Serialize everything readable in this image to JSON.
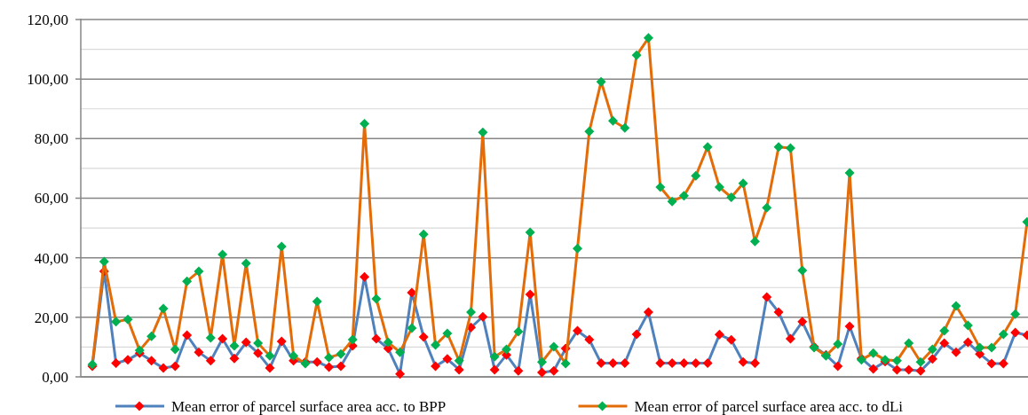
{
  "chart_data": {
    "type": "line",
    "categories": [
      null,
      null,
      null,
      null,
      null,
      null,
      null,
      null,
      null,
      null,
      null,
      null,
      null,
      null,
      null,
      null,
      null,
      null,
      null,
      null,
      null,
      null,
      null,
      null,
      null,
      null,
      null,
      null,
      null,
      null,
      null,
      null,
      null,
      null,
      null,
      null,
      null,
      null,
      null,
      null,
      null,
      null,
      null,
      null,
      null,
      null,
      null,
      null,
      null,
      null,
      null,
      null,
      null,
      null,
      null,
      null,
      null,
      null,
      null,
      null,
      null,
      null,
      null,
      null,
      null,
      null,
      null,
      null,
      null,
      null,
      null,
      null,
      null,
      null,
      null,
      null,
      null,
      null,
      null,
      null
    ],
    "series": [
      {
        "name": "Mean error of parcel surface area acc. to BPP",
        "color": "#4f81bd",
        "values": [
          3.6,
          35.4,
          4.6,
          5.7,
          8,
          5.4,
          3,
          3.6,
          14,
          8.3,
          5.4,
          12.8,
          6.2,
          11.6,
          8,
          3,
          11.9,
          5.4,
          5,
          5,
          3.3,
          3.6,
          10.4,
          33.6,
          12.8,
          9.5,
          1,
          28.3,
          13.4,
          3.6,
          6,
          2.4,
          16.6,
          20.2,
          2.4,
          7.4,
          2,
          27.7,
          1.5,
          2,
          9.5,
          15.5,
          12.5,
          4.6,
          4.6,
          4.6,
          14.3,
          21.7,
          4.6,
          4.6,
          4.6,
          4.6,
          4.6,
          14.2,
          12.4,
          5,
          4.6,
          26.8,
          21.7,
          12.8,
          18.5,
          10.1,
          7.4,
          3.6,
          17,
          6.2,
          2.7,
          5.1,
          2.4,
          2.4,
          2,
          6,
          11.3,
          8.3,
          11.6,
          7.7,
          4.5,
          4.5,
          14.9,
          14
        ]
      },
      {
        "name": "Mean error of parcel surface area acc. to dLi",
        "color": "#e36c09",
        "values": [
          4.2,
          38.7,
          18.5,
          19.3,
          8.9,
          13.6,
          22.9,
          9.2,
          32.1,
          35.4,
          13.1,
          41.1,
          10.4,
          38.1,
          11.3,
          7.1,
          43.8,
          7.1,
          4.5,
          25.3,
          6.5,
          7.7,
          12.5,
          85,
          26.2,
          11.6,
          8.3,
          16.4,
          47.9,
          10.7,
          14.6,
          5.4,
          21.7,
          82.1,
          6.8,
          9.2,
          15.2,
          48.5,
          5,
          10.1,
          4.5,
          43.1,
          82.4,
          99.1,
          86,
          83.6,
          108,
          113.8,
          63.7,
          58.9,
          60.8,
          67.5,
          77.2,
          63.7,
          60.3,
          65,
          45.5,
          56.8,
          77.2,
          76.8,
          35.7,
          9.8,
          7.1,
          11,
          68.5,
          5.7,
          8,
          5.7,
          5.4,
          11.3,
          5,
          9.2,
          15.5,
          23.8,
          17.3,
          9.8,
          9.8,
          14.3,
          21.1,
          52
        ]
      }
    ],
    "ylim": [
      0,
      120
    ],
    "yticks": [
      {
        "value": 0,
        "label": "0,00"
      },
      {
        "value": 10,
        "label": null
      },
      {
        "value": 20,
        "label": "20,00"
      },
      {
        "value": 30,
        "label": null
      },
      {
        "value": 40,
        "label": "40,00"
      },
      {
        "value": 50,
        "label": null
      },
      {
        "value": 60,
        "label": "60,00"
      },
      {
        "value": 70,
        "label": null
      },
      {
        "value": 80,
        "label": "80,00"
      },
      {
        "value": 90,
        "label": null
      },
      {
        "value": 100,
        "label": "100,00"
      },
      {
        "value": 110,
        "label": null
      },
      {
        "value": 120,
        "label": "120,00"
      }
    ],
    "grid": true,
    "legend": "bottom",
    "marker": "diamond",
    "line_style": "solid"
  }
}
